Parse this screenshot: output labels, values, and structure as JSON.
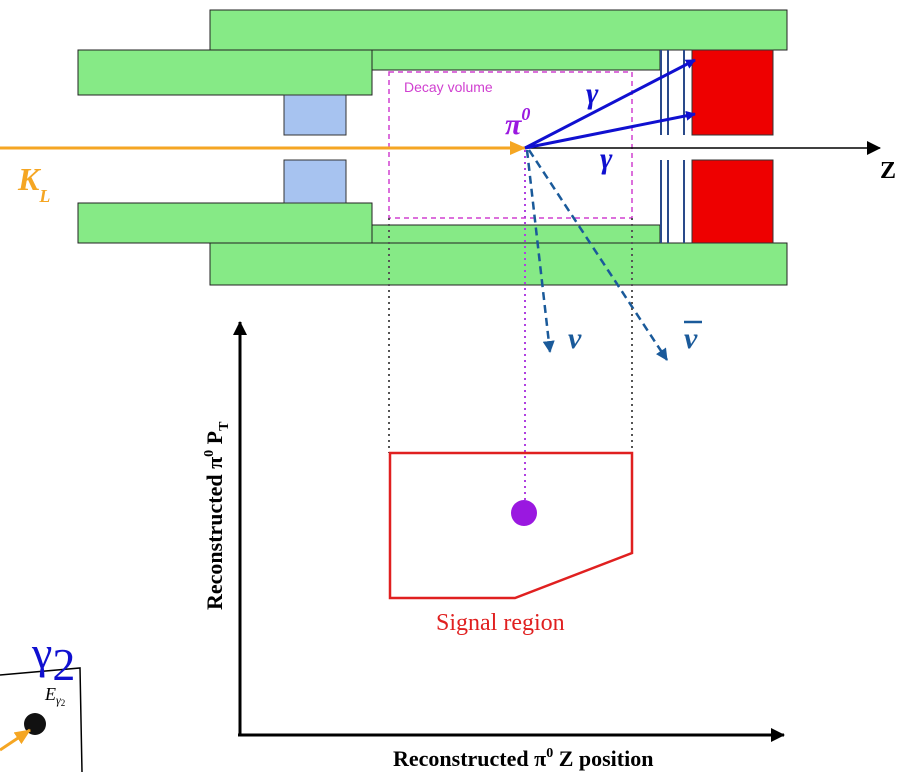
{
  "diagram": {
    "decay_volume": "Decay volume",
    "gamma_upper": "γ",
    "gamma_lower": "γ",
    "pi0": {
      "symbol": "π",
      "sup": "0"
    },
    "kl": {
      "symbol": "K",
      "sub": "L"
    },
    "z_label": "Z",
    "nu": "ν",
    "nubar": "ν",
    "y_axis_label": {
      "main": "Reconstructed π",
      "sup": "0",
      "rest": " P",
      "sub": "T"
    },
    "x_axis_label": {
      "main": "Reconstructed π",
      "sup": "0",
      "rest": " Z position"
    },
    "signal_region": "Signal region",
    "inset_gamma": {
      "symbol": "γ",
      "sub": "2"
    },
    "inset_energy": {
      "symbol": "E",
      "sub": "γ",
      "subsub": "2"
    }
  }
}
